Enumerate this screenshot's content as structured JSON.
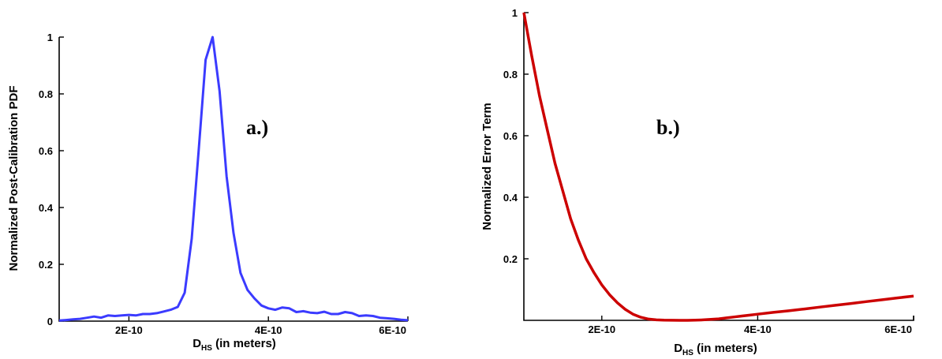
{
  "charts": {
    "a": {
      "panel_label": "a.)",
      "ylabel": "Normalized Post-Calibration PDF",
      "xlabel_main": "D",
      "xlabel_sub": "HS",
      "xlabel_rest": " (in meters)",
      "y_tick_labels": [
        "0",
        "0.2",
        "0.4",
        "0.6",
        "0.8",
        "1"
      ],
      "x_tick_labels": [
        "2E-10",
        "4E-10",
        "6E-10"
      ]
    },
    "b": {
      "panel_label": "b.)",
      "ylabel": "Normalized Error Term",
      "xlabel_main": "D",
      "xlabel_sub": "HS",
      "xlabel_rest": " (in meters)",
      "y_tick_labels": [
        "0.2",
        "0.4",
        "0.6",
        "0.8",
        "1"
      ],
      "x_tick_labels": [
        "2E-10",
        "4E-10",
        "6E-10"
      ]
    }
  },
  "chart_data": [
    {
      "type": "line",
      "panel": "a.)",
      "xlabel": "DHS (in meters)",
      "ylabel": "Normalized Post-Calibration PDF",
      "xlim": [
        1e-10,
        6e-10
      ],
      "ylim": [
        0,
        1
      ],
      "x_ticks": [
        2e-10,
        4e-10,
        6e-10
      ],
      "y_ticks": [
        0,
        0.2,
        0.4,
        0.6,
        0.8,
        1
      ],
      "color": "#3b3bff",
      "x": [
        1e-10,
        1.1e-10,
        1.2e-10,
        1.3e-10,
        1.4e-10,
        1.5e-10,
        1.6e-10,
        1.7e-10,
        1.8e-10,
        1.9e-10,
        2e-10,
        2.1e-10,
        2.2e-10,
        2.3e-10,
        2.4e-10,
        2.5e-10,
        2.6e-10,
        2.7e-10,
        2.8e-10,
        2.9e-10,
        3e-10,
        3.1e-10,
        3.2e-10,
        3.3e-10,
        3.4e-10,
        3.5e-10,
        3.6e-10,
        3.7e-10,
        3.8e-10,
        3.9e-10,
        4e-10,
        4.1e-10,
        4.2e-10,
        4.3e-10,
        4.4e-10,
        4.5e-10,
        4.6e-10,
        4.7e-10,
        4.8e-10,
        4.9e-10,
        5e-10,
        5.1e-10,
        5.2e-10,
        5.3e-10,
        5.4e-10,
        5.5e-10,
        5.6e-10,
        5.7e-10,
        5.8e-10,
        5.9e-10,
        6e-10
      ],
      "y": [
        0.002,
        0.004,
        0.006,
        0.008,
        0.012,
        0.016,
        0.012,
        0.02,
        0.018,
        0.02,
        0.022,
        0.02,
        0.025,
        0.025,
        0.028,
        0.034,
        0.04,
        0.05,
        0.1,
        0.29,
        0.6,
        0.92,
        1.0,
        0.81,
        0.51,
        0.31,
        0.17,
        0.11,
        0.08,
        0.055,
        0.045,
        0.04,
        0.048,
        0.045,
        0.032,
        0.035,
        0.03,
        0.028,
        0.033,
        0.025,
        0.025,
        0.032,
        0.028,
        0.018,
        0.02,
        0.018,
        0.012,
        0.01,
        0.008,
        0.005,
        0.003
      ]
    },
    {
      "type": "line",
      "panel": "b.)",
      "xlabel": "DHS (in meters)",
      "ylabel": "Normalized Error Term",
      "xlim": [
        1e-10,
        6e-10
      ],
      "ylim": [
        0,
        1
      ],
      "x_ticks": [
        2e-10,
        4e-10,
        6e-10
      ],
      "y_ticks": [
        0.2,
        0.4,
        0.6,
        0.8,
        1
      ],
      "color": "#cc0000",
      "x": [
        1e-10,
        1.1e-10,
        1.2e-10,
        1.3e-10,
        1.4e-10,
        1.5e-10,
        1.6e-10,
        1.7e-10,
        1.8e-10,
        1.9e-10,
        2e-10,
        2.1e-10,
        2.2e-10,
        2.3e-10,
        2.4e-10,
        2.5e-10,
        2.6e-10,
        2.7e-10,
        2.8e-10,
        2.9e-10,
        3e-10,
        3.1e-10,
        3.2e-10,
        3.3e-10,
        3.4e-10,
        3.5e-10,
        3.6e-10,
        3.7e-10,
        3.8e-10,
        3.9e-10,
        4e-10,
        4.2e-10,
        4.4e-10,
        4.6e-10,
        4.8e-10,
        5e-10,
        5.2e-10,
        5.4e-10,
        5.6e-10,
        5.8e-10,
        6e-10
      ],
      "y": [
        1.0,
        0.86,
        0.73,
        0.62,
        0.51,
        0.42,
        0.33,
        0.26,
        0.2,
        0.155,
        0.115,
        0.083,
        0.057,
        0.036,
        0.02,
        0.01,
        0.004,
        0.0015,
        0.0005,
        0.0002,
        0.0001,
        0.0001,
        0.0005,
        0.0015,
        0.003,
        0.005,
        0.008,
        0.011,
        0.014,
        0.017,
        0.02,
        0.026,
        0.031,
        0.037,
        0.043,
        0.049,
        0.055,
        0.061,
        0.067,
        0.073,
        0.079
      ]
    }
  ]
}
